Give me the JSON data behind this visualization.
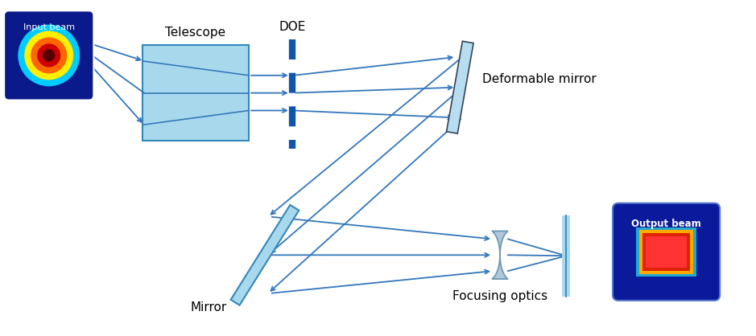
{
  "bg_color": "#ffffff",
  "telescope_color": "#a8d8ec",
  "telescope_edge": "#3388bb",
  "doe_color": "#1155aa",
  "dm_color": "#b8ddf0",
  "dm_edge": "#334455",
  "mirror_color": "#a8d8ec",
  "mirror_edge": "#3388bb",
  "lens_color": "#b0c8dc",
  "lens_edge": "#7099b0",
  "fp_color": "#a8d8ec",
  "fp_edge": "#3388bb",
  "line_color": "#3377bb",
  "line_width": 1.3,
  "labels": {
    "telescope": "Telescope",
    "doe": "DOE",
    "deformable_mirror": "Deformable mirror",
    "mirror": "Mirror",
    "focusing_optics": "Focusing optics",
    "input_beam": "Input beam",
    "output_beam": "Output beam"
  },
  "label_fontsize": 11
}
